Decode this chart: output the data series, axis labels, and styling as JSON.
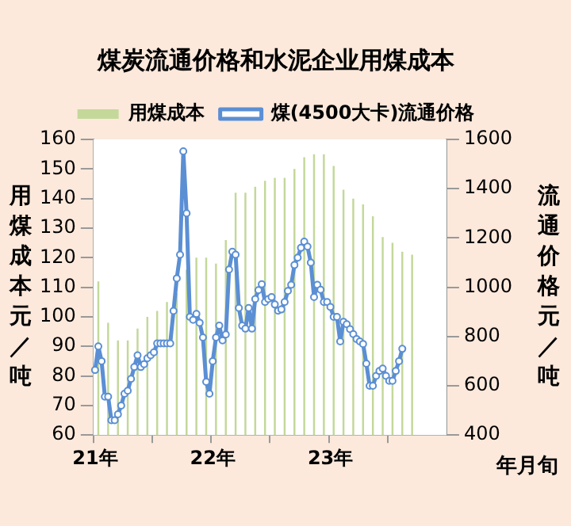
{
  "chart_data": {
    "type": "bar",
    "title": "煤炭流通价格和水泥企业用煤成本",
    "ylabel": "用煤成本元／吨",
    "y2label": "流通价格元／吨",
    "xlabel": "年月旬",
    "legend": "top",
    "marker": "circle",
    "ylim": [
      60,
      160
    ],
    "yticks": [
      60,
      70,
      80,
      90,
      100,
      110,
      120,
      130,
      140,
      150,
      160
    ],
    "y2lim": [
      400,
      1600
    ],
    "y2ticks": [
      400,
      600,
      800,
      1000,
      1200,
      1400,
      1600
    ],
    "categories": [
      "21年",
      null,
      null,
      null,
      null,
      null,
      null,
      null,
      null,
      null,
      null,
      null,
      null,
      null,
      null,
      null,
      null,
      null,
      null,
      null,
      null,
      null,
      null,
      null,
      null,
      null,
      null,
      null,
      null,
      null,
      null,
      null,
      null,
      null,
      null,
      null,
      "22年",
      null,
      null,
      null,
      null,
      null,
      null,
      null,
      null,
      null,
      null,
      null,
      null,
      null,
      null,
      null,
      null,
      null,
      null,
      null,
      null,
      null,
      null,
      null,
      null,
      null,
      null,
      null,
      null,
      null,
      null,
      null,
      null,
      null,
      null,
      null,
      "23年",
      null,
      null,
      null,
      null,
      null,
      null,
      null,
      null,
      null,
      null,
      null,
      null,
      null,
      null,
      null,
      null,
      null,
      null,
      null,
      null,
      null,
      null,
      null,
      null,
      null,
      null,
      null,
      null,
      null,
      null,
      null,
      null,
      null,
      null,
      null
    ],
    "series": [
      {
        "name": "用煤成本",
        "color": "#c4d89a",
        "values": [
          null,
          112,
          null,
          null,
          98,
          null,
          null,
          92,
          null,
          null,
          92,
          null,
          null,
          96,
          null,
          null,
          100,
          null,
          null,
          102,
          null,
          null,
          105,
          null,
          null,
          108,
          null,
          null,
          116,
          null,
          null,
          120,
          null,
          null,
          120,
          null,
          null,
          118,
          null,
          null,
          126,
          null,
          null,
          142,
          null,
          null,
          142,
          null,
          null,
          144,
          null,
          null,
          146,
          null,
          null,
          147,
          null,
          null,
          147,
          null,
          null,
          150,
          null,
          null,
          154,
          null,
          null,
          155,
          null,
          null,
          155,
          null,
          null,
          151,
          null,
          null,
          143,
          null,
          null,
          140,
          null,
          null,
          138,
          null,
          null,
          134,
          null,
          null,
          127,
          null,
          null,
          125,
          null,
          null,
          122,
          null,
          null,
          121,
          null,
          null,
          null,
          null,
          null,
          null,
          null,
          null,
          null,
          null
        ]
      },
      {
        "name": "煤(4500大卡)流通价格",
        "type": "line",
        "axis": "y2",
        "color": "#5b8fd4",
        "values": [
          664,
          760,
          700,
          556,
          556,
          460,
          460,
          484,
          520,
          568,
          580,
          628,
          676,
          724,
          676,
          688,
          712,
          724,
          736,
          772,
          772,
          772,
          772,
          772,
          904,
          1036,
          1132,
          1552,
          1300,
          880,
          868,
          892,
          856,
          796,
          616,
          568,
          700,
          796,
          844,
          784,
          808,
          1072,
          1144,
          1132,
          916,
          844,
          832,
          916,
          832,
          952,
          988,
          1012,
          940,
          952,
          960,
          930,
          905,
          910,
          940,
          985,
          1010,
          1090,
          1120,
          1160,
          1185,
          1165,
          1100,
          960,
          1010,
          990,
          940,
          940,
          920,
          880,
          880,
          780,
          860,
          850,
          830,
          810,
          790,
          780,
          770,
          690,
          600,
          600,
          640,
          660,
          670,
          640,
          620,
          620,
          660,
          700,
          750,
          null,
          null,
          null,
          null,
          null,
          null,
          null,
          null,
          null,
          null,
          null,
          null,
          null
        ]
      }
    ]
  }
}
